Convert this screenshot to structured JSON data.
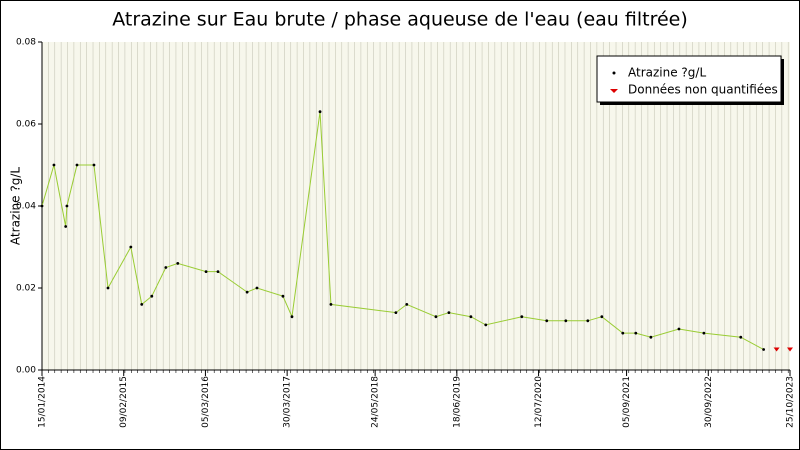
{
  "chart_data": {
    "type": "line",
    "title": "Atrazine sur Eau brute / phase aqueuse de l'eau (eau filtrée)",
    "y_label": "Atrazine ?g/L",
    "xlim": [
      "15/01/2014",
      "25/10/2023"
    ],
    "xticks": [
      "15/01/2014",
      "09/02/2015",
      "05/03/2016",
      "30/03/2017",
      "24/05/2018",
      "18/06/2019",
      "12/07/2020",
      "05/09/2021",
      "30/09/2022",
      "25/10/2023"
    ],
    "ylim": [
      0,
      0.08
    ],
    "yticks": [
      {
        "value": 0,
        "label": "0.00"
      },
      0.02,
      0.04,
      0.06,
      0.08
    ],
    "grid": true,
    "legend": "top-right",
    "series": [
      {
        "name": "Atrazine ?g/L",
        "color": "#99cc33",
        "x": [
          "15/01/2014",
          "13/03/2014",
          "08/05/2014",
          "14/05/2014",
          "01/07/2014",
          "20/09/2014",
          "26/11/2014",
          "15/03/2015",
          "06/05/2015",
          "23/06/2015",
          "29/08/2015",
          "25/10/2015",
          "08/03/2016",
          "04/05/2016",
          "20/09/2016",
          "06/11/2016",
          "10/03/2017",
          "22/04/2017",
          "03/09/2017",
          "25/10/2017",
          "31/08/2018",
          "22/10/2018",
          "10/03/2019",
          "11/05/2019",
          "24/08/2019",
          "03/11/2019",
          "23/04/2020",
          "20/08/2020",
          "19/11/2020",
          "04/03/2021",
          "10/05/2021",
          "18/08/2021",
          "19/10/2021",
          "30/12/2021",
          "13/05/2022",
          "09/09/2022",
          "04/03/2023",
          "21/06/2023"
        ],
        "values": [
          0.04,
          0.05,
          0.035,
          0.04,
          0.05,
          0.05,
          0.02,
          0.03,
          0.016,
          0.018,
          0.025,
          0.026,
          0.024,
          0.024,
          0.019,
          0.02,
          0.018,
          0.013,
          0.063,
          0.016,
          0.014,
          0.016,
          0.013,
          0.014,
          0.013,
          0.011,
          0.013,
          0.012,
          0.012,
          0.012,
          0.013,
          0.009,
          0.009,
          0.008,
          0.01,
          0.009,
          0.008,
          0.005
        ]
      },
      {
        "name": "Données non quantifiées",
        "color": "#dd0000",
        "x": [
          "22/08/2023",
          "25/10/2023"
        ],
        "values": [
          0.005,
          0.005
        ]
      }
    ]
  }
}
